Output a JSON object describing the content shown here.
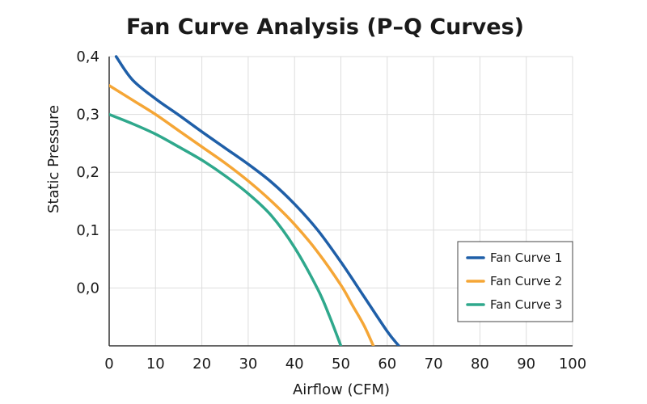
{
  "chart_data": {
    "type": "line",
    "title": "Fan Curve Analysis (P–Q Curves)",
    "xlabel": "Airflow (CFM)",
    "ylabel": "Static Pressure",
    "xlim": [
      0,
      100
    ],
    "ylim": [
      -0.1,
      0.4
    ],
    "x_ticks": [
      "0",
      "10",
      "20",
      "30",
      "40",
      "50",
      "60",
      "70",
      "80",
      "90",
      "100"
    ],
    "y_ticks": [
      "0,0",
      "0,1",
      "0,2",
      "0,3",
      "0,4"
    ],
    "y_tick_values": [
      0.0,
      0.1,
      0.2,
      0.3,
      0.4
    ],
    "grid": true,
    "legend_position": "bottom-right",
    "series": [
      {
        "name": "Fan Curve 1",
        "color": "#1f5fa8",
        "x": [
          1.5,
          5,
          10,
          15,
          20,
          25,
          30,
          35,
          40,
          45,
          50,
          55,
          60,
          62.5
        ],
        "y": [
          0.4,
          0.36,
          0.327,
          0.299,
          0.27,
          0.242,
          0.214,
          0.183,
          0.145,
          0.1,
          0.045,
          -0.015,
          -0.075,
          -0.1
        ]
      },
      {
        "name": "Fan Curve 2",
        "color": "#f5a636",
        "x": [
          0,
          5,
          10,
          15,
          20,
          25,
          30,
          35,
          40,
          45,
          50,
          52.5,
          55,
          57
        ],
        "y": [
          0.35,
          0.325,
          0.3,
          0.272,
          0.244,
          0.216,
          0.185,
          0.15,
          0.11,
          0.062,
          0.005,
          -0.03,
          -0.065,
          -0.1
        ]
      },
      {
        "name": "Fan Curve 3",
        "color": "#2fa88c",
        "x": [
          0,
          5,
          10,
          15,
          20,
          25,
          30,
          35,
          40,
          45,
          47.5,
          50
        ],
        "y": [
          0.3,
          0.284,
          0.266,
          0.244,
          0.221,
          0.194,
          0.163,
          0.125,
          0.07,
          -0.002,
          -0.048,
          -0.1
        ]
      }
    ]
  }
}
